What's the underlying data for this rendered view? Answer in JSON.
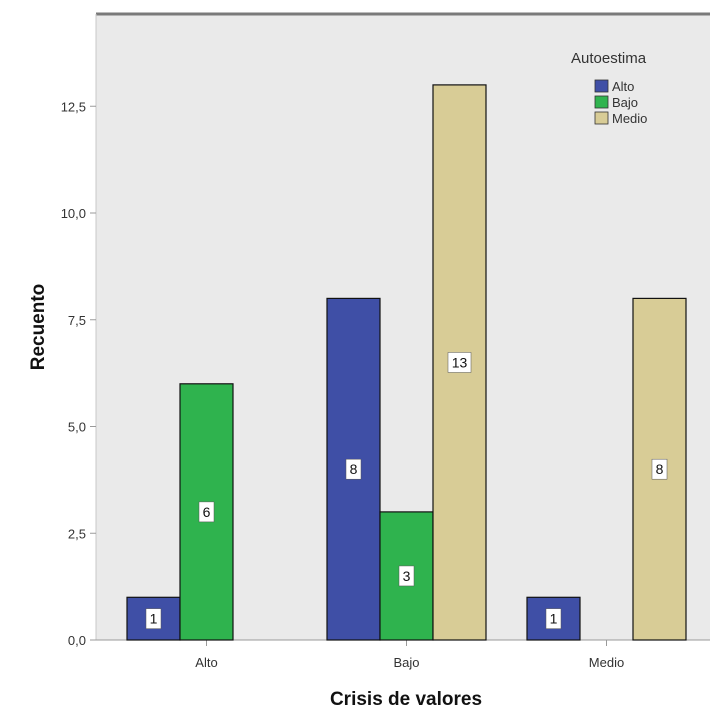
{
  "chart_data": {
    "type": "bar",
    "categories": [
      "Alto",
      "Bajo",
      "Medio"
    ],
    "tick_labels": [
      "Alto",
      "Bajo",
      "Medio"
    ],
    "series": [
      {
        "name": "Alto",
        "color": "#3f4fa6",
        "values": [
          1,
          8,
          1
        ]
      },
      {
        "name": "Bajo",
        "color": "#2fb34e",
        "values": [
          6,
          3,
          0
        ]
      },
      {
        "name": "Medio",
        "color": "#d8cc96",
        "values": [
          0,
          13,
          8
        ]
      }
    ],
    "data_labels": [
      [
        "1",
        "8",
        "1"
      ],
      [
        "6",
        "3",
        null
      ],
      [
        null,
        "13",
        "8"
      ]
    ],
    "xlabel": "Crisis de valores",
    "ylabel": "Recuento",
    "ylim": [
      0,
      15.2
    ],
    "yticks": [
      0,
      2.5,
      5,
      7.5,
      10,
      12.5
    ],
    "ytick_labels": [
      "0,0",
      "2,5",
      "5,0",
      "7,5",
      "10,0",
      "12,5"
    ],
    "legend": {
      "title": "Autoestima",
      "position": "top-right"
    },
    "grid": false,
    "plot_background": "#eaeaea"
  }
}
